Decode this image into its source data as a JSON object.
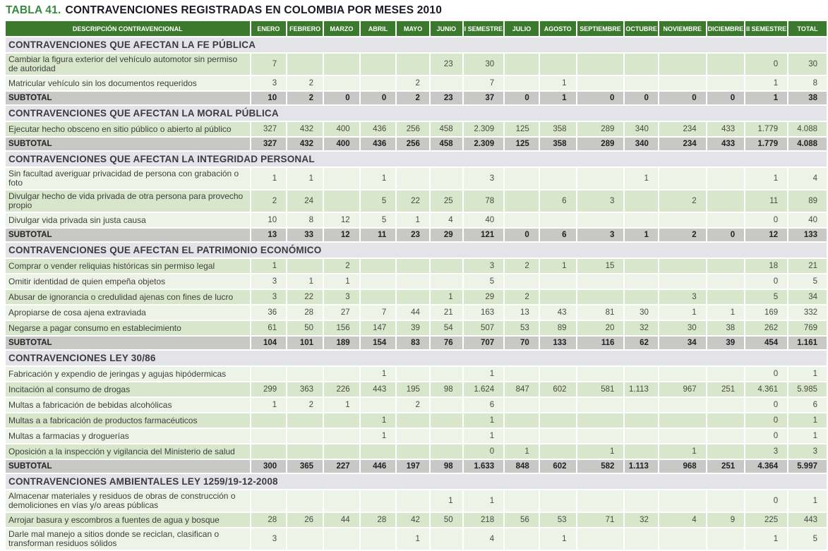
{
  "title": {
    "prefix": "TABLA 41.",
    "text": "CONTRAVENCIONES REGISTRADAS EN COLOMBIA POR MESES 2010"
  },
  "colors": {
    "header_green": "#3b7a2c",
    "row_green": "#d8e6cc",
    "row_light": "#eef3e7",
    "subtotal_gray": "#c8c8c6",
    "section_gray": "#e4e3e7",
    "title_green": "#378a3d",
    "title_dark": "#1a1a24"
  },
  "chart_data": {
    "type": "table",
    "title": "TABLA 41. CONTRAVENCIONES REGISTRADAS EN COLOMBIA POR MESES 2010",
    "description_header": "DESCRIPCIÓN CONTRAVENCIONAL",
    "month_headers": [
      "ENERO",
      "FEBRERO",
      "MARZO",
      "ABRIL",
      "MAYO",
      "JUNIO",
      "I SEMESTRE",
      "JULIO",
      "AGOSTO",
      "SEPTIEMBRE",
      "OCTUBRE",
      "NOVIEMBRE",
      "DICIEMBRE",
      "II SEMESTRE",
      "TOTAL"
    ],
    "subtotal_label": "SUBTOTAL",
    "sections": [
      {
        "title": "CONTRAVENCIONES QUE AFECTAN LA FE PÚBLICA",
        "rows": [
          {
            "description": "Cambiar la figura exterior del vehículo automotor sin permiso de autoridad",
            "values": [
              "7",
              "",
              "",
              "",
              "",
              "23",
              "30",
              "",
              "",
              "",
              "",
              "",
              "",
              "0",
              "30"
            ]
          },
          {
            "description": "Matricular vehículo sin los documentos requeridos",
            "values": [
              "3",
              "2",
              "",
              "",
              "2",
              "",
              "7",
              "",
              "1",
              "",
              "",
              "",
              "",
              "1",
              "8"
            ]
          }
        ],
        "subtotal": [
          "10",
          "2",
          "0",
          "0",
          "2",
          "23",
          "37",
          "0",
          "1",
          "0",
          "0",
          "0",
          "0",
          "1",
          "38"
        ]
      },
      {
        "title": "CONTRAVENCIONES QUE AFECTAN LA MORAL PÚBLICA",
        "rows": [
          {
            "description": "Ejecutar hecho obsceno en sitio público o abierto al público",
            "values": [
              "327",
              "432",
              "400",
              "436",
              "256",
              "458",
              "2.309",
              "125",
              "358",
              "289",
              "340",
              "234",
              "433",
              "1.779",
              "4.088"
            ]
          }
        ],
        "subtotal": [
          "327",
          "432",
          "400",
          "436",
          "256",
          "458",
          "2.309",
          "125",
          "358",
          "289",
          "340",
          "234",
          "433",
          "1.779",
          "4.088"
        ]
      },
      {
        "title": "CONTRAVENCIONES QUE AFECTAN LA INTEGRIDAD PERSONAL",
        "rows": [
          {
            "description": "Sin facultad averiguar privacidad de persona con grabación o foto",
            "values": [
              "1",
              "1",
              "",
              "1",
              "",
              "",
              "3",
              "",
              "",
              "",
              "1",
              "",
              "",
              "1",
              "4"
            ]
          },
          {
            "description": "Divulgar hecho de vida privada de otra persona para provecho propio",
            "values": [
              "2",
              "24",
              "",
              "5",
              "22",
              "25",
              "78",
              "",
              "6",
              "3",
              "",
              "2",
              "",
              "11",
              "89"
            ]
          },
          {
            "description": "Divulgar vida privada sin justa causa",
            "values": [
              "10",
              "8",
              "12",
              "5",
              "1",
              "4",
              "40",
              "",
              "",
              "",
              "",
              "",
              "",
              "0",
              "40"
            ]
          }
        ],
        "subtotal": [
          "13",
          "33",
          "12",
          "11",
          "23",
          "29",
          "121",
          "0",
          "6",
          "3",
          "1",
          "2",
          "0",
          "12",
          "133"
        ]
      },
      {
        "title": "CONTRAVENCIONES QUE AFECTAN EL PATRIMONIO ECONÓMICO",
        "rows": [
          {
            "description": "Comprar o vender reliquias históricas sin permiso legal",
            "values": [
              "1",
              "",
              "2",
              "",
              "",
              "",
              "3",
              "2",
              "1",
              "15",
              "",
              "",
              "",
              "18",
              "21"
            ]
          },
          {
            "description": "Omitir identidad de quien empeña objetos",
            "values": [
              "3",
              "1",
              "1",
              "",
              "",
              "",
              "5",
              "",
              "",
              "",
              "",
              "",
              "",
              "0",
              "5"
            ]
          },
          {
            "description": "Abusar de ignorancia o credulidad ajenas con fines de lucro",
            "values": [
              "3",
              "22",
              "3",
              "",
              "",
              "1",
              "29",
              "2",
              "",
              "",
              "",
              "3",
              "",
              "5",
              "34"
            ]
          },
          {
            "description": "Apropiarse de cosa ajena extraviada",
            "values": [
              "36",
              "28",
              "27",
              "7",
              "44",
              "21",
              "163",
              "13",
              "43",
              "81",
              "30",
              "1",
              "1",
              "169",
              "332"
            ]
          },
          {
            "description": "Negarse a pagar consumo en establecimiento",
            "values": [
              "61",
              "50",
              "156",
              "147",
              "39",
              "54",
              "507",
              "53",
              "89",
              "20",
              "32",
              "30",
              "38",
              "262",
              "769"
            ]
          }
        ],
        "subtotal": [
          "104",
          "101",
          "189",
          "154",
          "83",
          "76",
          "707",
          "70",
          "133",
          "116",
          "62",
          "34",
          "39",
          "454",
          "1.161"
        ]
      },
      {
        "title": "CONTRAVENCIONES LEY 30/86",
        "rows": [
          {
            "description": "Fabricación y expendio de jeringas y agujas hipódermicas",
            "values": [
              "",
              "",
              "",
              "1",
              "",
              "",
              "1",
              "",
              "",
              "",
              "",
              "",
              "",
              "0",
              "1"
            ]
          },
          {
            "description": "Incitación al consumo de drogas",
            "values": [
              "299",
              "363",
              "226",
              "443",
              "195",
              "98",
              "1.624",
              "847",
              "602",
              "581",
              "1.113",
              "967",
              "251",
              "4.361",
              "5.985"
            ]
          },
          {
            "description": "Multas a fabricación de bebidas alcohólicas",
            "values": [
              "1",
              "2",
              "1",
              "",
              "2",
              "",
              "6",
              "",
              "",
              "",
              "",
              "",
              "",
              "0",
              "6"
            ]
          },
          {
            "description": "Multas a a fabricación de productos farmacéuticos",
            "values": [
              "",
              "",
              "",
              "1",
              "",
              "",
              "1",
              "",
              "",
              "",
              "",
              "",
              "",
              "0",
              "1"
            ]
          },
          {
            "description": "Multas a farmacias y droguerías",
            "values": [
              "",
              "",
              "",
              "1",
              "",
              "",
              "1",
              "",
              "",
              "",
              "",
              "",
              "",
              "0",
              "1"
            ]
          },
          {
            "description": "Oposición a la inspección y vigilancia del Ministerio de salud",
            "values": [
              "",
              "",
              "",
              "",
              "",
              "",
              "0",
              "1",
              "",
              "1",
              "",
              "1",
              "",
              "3",
              "3"
            ]
          }
        ],
        "subtotal": [
          "300",
          "365",
          "227",
          "446",
          "197",
          "98",
          "1.633",
          "848",
          "602",
          "582",
          "1.113",
          "968",
          "251",
          "4.364",
          "5.997"
        ]
      },
      {
        "title": "CONTRAVENCIONES AMBIENTALES LEY 1259/19-12-2008",
        "rows": [
          {
            "description": "Almacenar materiales y residuos de obras de construcción o demoliciones en vías y/o areas públicas",
            "values": [
              "",
              "",
              "",
              "",
              "",
              "1",
              "1",
              "",
              "",
              "",
              "",
              "",
              "",
              "0",
              "1"
            ]
          },
          {
            "description": "Arrojar basura y escombros a fuentes de agua y bosque",
            "values": [
              "28",
              "26",
              "44",
              "28",
              "42",
              "50",
              "218",
              "56",
              "53",
              "71",
              "32",
              "4",
              "9",
              "225",
              "443"
            ]
          },
          {
            "description": "Darle mal manejo a sitios donde se reciclan, clasifican o transforman residuos sólidos",
            "values": [
              "3",
              "",
              "",
              "",
              "1",
              "",
              "4",
              "",
              "1",
              "",
              "",
              "",
              "",
              "1",
              "5"
            ]
          }
        ],
        "subtotal": null
      }
    ]
  }
}
